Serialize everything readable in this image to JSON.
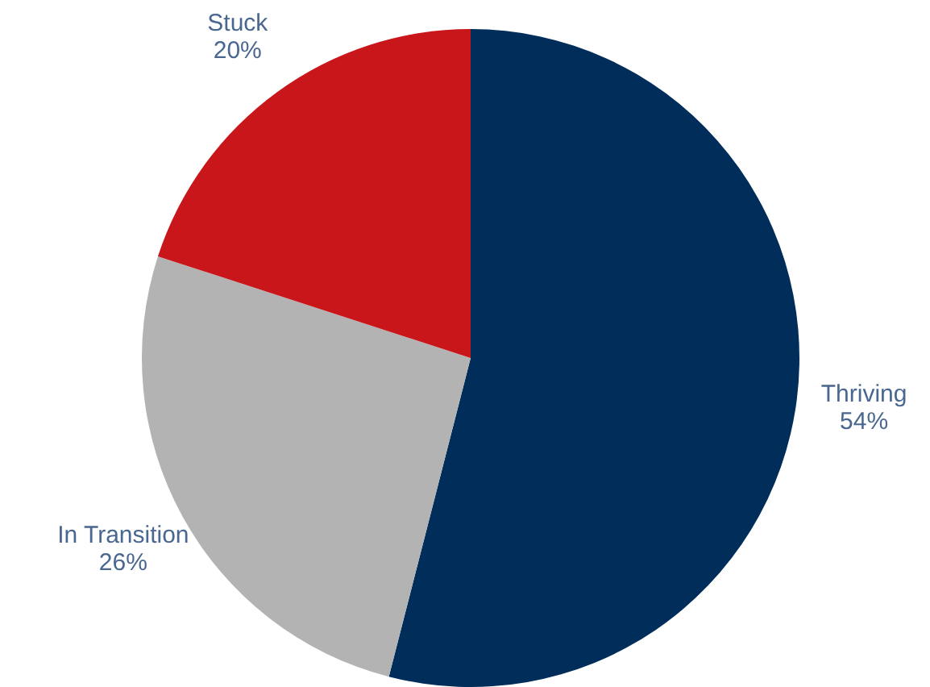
{
  "chart_data": {
    "type": "pie",
    "categories": [
      "Thriving",
      "In Transition",
      "Stuck"
    ],
    "values": [
      54,
      26,
      20
    ],
    "value_labels": [
      "54%",
      "26%",
      "20%"
    ],
    "colors": [
      "#002d5a",
      "#b3b3b3",
      "#c8161a"
    ]
  }
}
